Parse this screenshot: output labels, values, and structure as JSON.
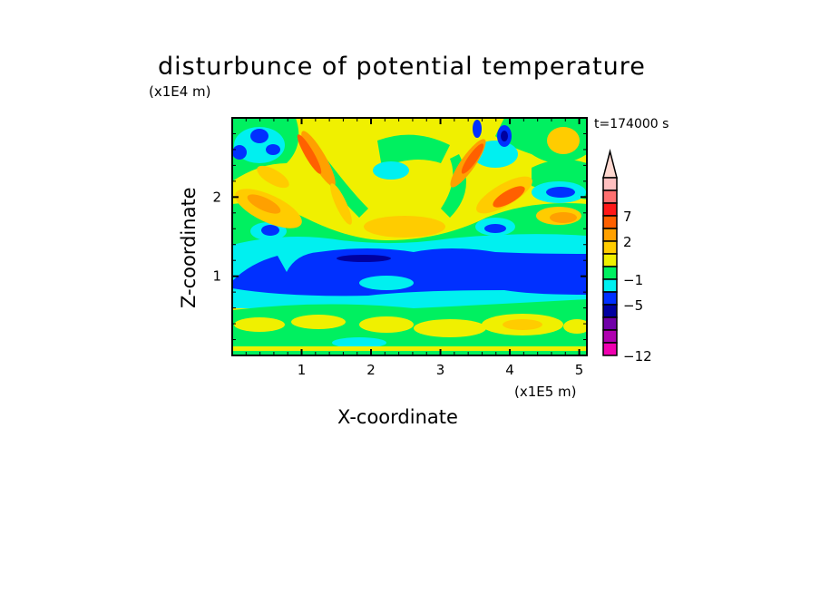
{
  "chart_data": {
    "type": "heatmap",
    "title": "disturbunce of potential temperature",
    "xlabel": "X-coordinate",
    "ylabel": "Z-coordinate",
    "x_unit": "(x1E5 m)",
    "y_unit": "(x1E4 m)",
    "annotation": "t=174000 s",
    "xlim": [
      0,
      5.11
    ],
    "ylim": [
      0,
      3.0
    ],
    "xticks": [
      "1",
      "2",
      "3",
      "4",
      "5"
    ],
    "xtick_values": [
      1,
      2,
      3,
      4,
      5
    ],
    "yticks": [
      "1",
      "2"
    ],
    "ytick_values": [
      1,
      2
    ],
    "colorbar": {
      "colors_top_to_bottom": [
        "#ffc0c0",
        "#ff7070",
        "#ff1818",
        "#ff6000",
        "#ffa000",
        "#ffcc00",
        "#f0f000",
        "#00f060",
        "#00f0f0",
        "#0030ff",
        "#0000a0",
        "#7000a8",
        "#b000b0",
        "#f000b0"
      ],
      "extend_color": "#ffd8d0",
      "labels": [
        "7",
        "2",
        "−1",
        "−5",
        "−12"
      ],
      "label_after_segment": [
        3,
        5,
        8,
        10,
        14
      ]
    }
  }
}
